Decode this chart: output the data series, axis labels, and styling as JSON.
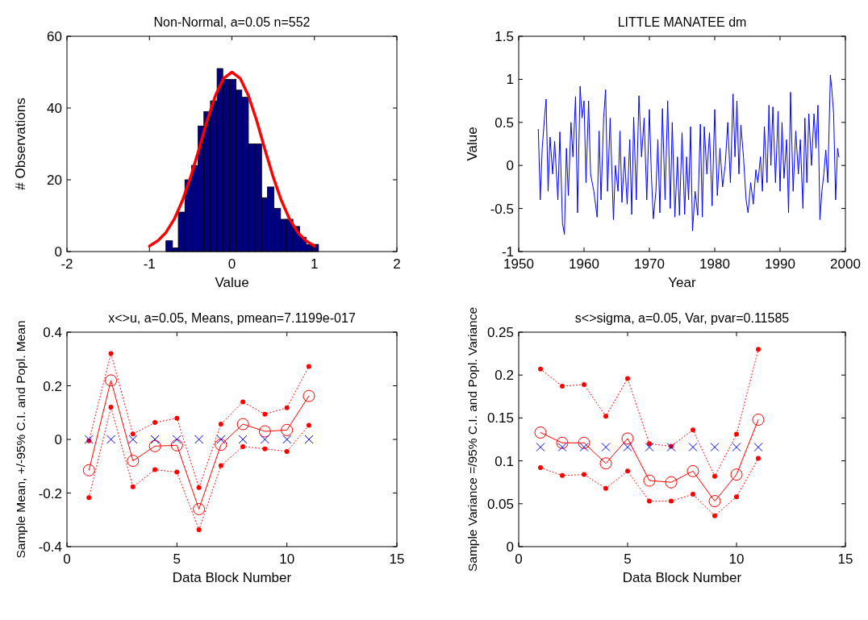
{
  "chart_data": [
    {
      "type": "histogram",
      "title": "Non-Normal, a=0.05 n=552",
      "xlabel": "Value",
      "ylabel": "# Observations",
      "xlim": [
        -2,
        2
      ],
      "ylim": [
        0,
        60
      ],
      "xticks": [
        -2,
        -1,
        0,
        1,
        2
      ],
      "yticks": [
        0,
        20,
        40,
        60
      ],
      "grid": false,
      "color": "#000080",
      "bins": [
        -0.8,
        -0.72,
        -0.65,
        -0.57,
        -0.49,
        -0.41,
        -0.34,
        -0.26,
        -0.18,
        -0.11,
        -0.03,
        0.05,
        0.12,
        0.2,
        0.28,
        0.36,
        0.43,
        0.51,
        0.59,
        0.66,
        0.74,
        0.82,
        0.9,
        0.97,
        1.05
      ],
      "values": [
        3,
        1,
        11,
        20,
        24,
        35,
        39,
        42,
        51,
        48,
        48,
        45,
        43,
        30,
        30,
        15,
        18,
        12,
        9,
        9,
        7,
        4,
        2,
        2
      ],
      "series": [
        {
          "type": "line",
          "color": "#ff0000",
          "x": [
            -1,
            -0.9,
            -0.8,
            -0.7,
            -0.6,
            -0.5,
            -0.4,
            -0.3,
            -0.2,
            -0.1,
            0,
            0.1,
            0.2,
            0.3,
            0.4,
            0.5,
            0.6,
            0.7,
            0.8,
            0.9,
            1
          ],
          "values": [
            1.5,
            3,
            5.3,
            9,
            14.2,
            20.8,
            28.5,
            36.5,
            43.5,
            48.3,
            50,
            48.3,
            43.5,
            36.5,
            28.5,
            20.8,
            14.2,
            9,
            5.3,
            3,
            1.5
          ]
        }
      ]
    },
    {
      "type": "line",
      "title": "LITTLE MANATEE dm",
      "xlabel": "Year",
      "ylabel": "Value",
      "xlim": [
        1950,
        2000
      ],
      "ylim": [
        -1,
        1.5
      ],
      "xticks": [
        1950,
        1960,
        1970,
        1980,
        1990,
        2000
      ],
      "yticks": [
        -1,
        -0.5,
        0,
        0.5,
        1,
        1.5
      ],
      "grid": false,
      "series": [
        {
          "color": "#0000ff",
          "x": [
            1953,
            1953.3,
            1953.6,
            1954,
            1954.2,
            1954.5,
            1954.8,
            1955.2,
            1955.5,
            1956,
            1956.3,
            1956.7,
            1957,
            1957.3,
            1957.6,
            1958,
            1958.3,
            1958.7,
            1959,
            1959.4,
            1959.7,
            1960,
            1960.3,
            1960.7,
            1961,
            1961.5,
            1962,
            1962.3,
            1962.6,
            1963,
            1963.3,
            1963.6,
            1964,
            1964.5,
            1964.8,
            1965.2,
            1965.5,
            1965.8,
            1966.2,
            1966.6,
            1967,
            1967.3,
            1967.6,
            1968,
            1968.4,
            1968.8,
            1969.2,
            1969.6,
            1970,
            1970.3,
            1970.6,
            1971,
            1971.3,
            1971.6,
            1972,
            1972.4,
            1972.8,
            1973.2,
            1973.5,
            1973.9,
            1974.3,
            1974.6,
            1975,
            1975.4,
            1975.7,
            1976,
            1976.3,
            1976.6,
            1977,
            1977.4,
            1977.8,
            1978.1,
            1978.4,
            1978.8,
            1979.2,
            1979.6,
            1980,
            1980.4,
            1980.8,
            1981.2,
            1981.6,
            1982,
            1982.4,
            1982.8,
            1983.1,
            1983.4,
            1983.7,
            1984,
            1984.4,
            1984.8,
            1985.1,
            1985.5,
            1985.9,
            1986.3,
            1986.6,
            1987,
            1987.3,
            1987.6,
            1988,
            1988.3,
            1988.6,
            1988.9,
            1989.3,
            1989.7,
            1990,
            1990.3,
            1990.6,
            1991,
            1991.3,
            1991.6,
            1992,
            1992.4,
            1992.8,
            1993.1,
            1993.5,
            1993.8,
            1994.1,
            1994.4,
            1994.8,
            1995.2,
            1995.5,
            1995.8,
            1996.1,
            1996.4,
            1996.7,
            1997,
            1997.3,
            1997.7,
            1997.9,
            1998.2,
            1998.5,
            1998.8,
            1999
          ],
          "values": [
            0.42,
            -0.4,
            0.2,
            0.6,
            0.77,
            -0.3,
            0.33,
            -0.1,
            0.28,
            -0.4,
            0.39,
            -0.67,
            -0.8,
            0.2,
            -0.35,
            0.5,
            0.1,
            0.8,
            -0.55,
            0.92,
            0.55,
            0.75,
            -0.2,
            0.75,
            -0.1,
            -0.3,
            -0.6,
            0.4,
            -0.4,
            0.55,
            0.88,
            -0.3,
            0.55,
            -0.63,
            0,
            -0.3,
            0.4,
            -0.43,
            0.1,
            -0.45,
            0.3,
            -0.57,
            0.56,
            -0.4,
            0.81,
            0.1,
            0.55,
            -0.4,
            0.65,
            -0.1,
            -0.62,
            -0.3,
            0.3,
            -0.55,
            0.66,
            -0.4,
            0.75,
            -0.5,
            0.5,
            -0.6,
            0.1,
            -0.58,
            0.38,
            -0.57,
            0.1,
            -0.4,
            0.45,
            -0.76,
            -0.3,
            -0.58,
            0.48,
            -0.6,
            0.45,
            -0.1,
            0.38,
            -0.47,
            0.65,
            -0.35,
            0.2,
            -0.25,
            0,
            0.5,
            -0.2,
            0.83,
            0.1,
            0.75,
            -0.1,
            0.47,
            0.1,
            -0.4,
            -0.55,
            -0.2,
            -0.45,
            -0.05,
            -0.2,
            0.1,
            -0.3,
            0.45,
            -0.2,
            0.7,
            0,
            0.68,
            -0.2,
            0.63,
            -0.3,
            0.5,
            -0.15,
            0.3,
            -0.55,
            0.85,
            -0.3,
            0.4,
            -0.1,
            0.3,
            -0.5,
            0.55,
            -0.2,
            0.6,
            0,
            0.6,
            0.2,
            0.7,
            -0.63,
            -0.3,
            -0.1,
            0.18,
            -0.2,
            1.05,
            0.9,
            0.6,
            -0.4,
            0.2,
            0.1
          ]
        }
      ]
    },
    {
      "type": "line",
      "title": "x<>u, a=0.05, Means, pmean=7.1199e-017",
      "xlabel": "Data Block Number",
      "ylabel": "Sample Mean, +/-95% C.I. and Popl. Mean",
      "xlim": [
        0,
        15
      ],
      "ylim": [
        -0.4,
        0.4
      ],
      "xticks": [
        0,
        5,
        10,
        15
      ],
      "yticks": [
        -0.4,
        -0.2,
        0,
        0.2,
        0.4
      ],
      "grid": false,
      "x": [
        1,
        2,
        3,
        4,
        5,
        6,
        7,
        8,
        9,
        10,
        11
      ],
      "series": [
        {
          "color": "#ff0000",
          "marker": "circle",
          "line_style": "solid",
          "values": [
            -0.115,
            0.22,
            -0.08,
            -0.025,
            -0.022,
            -0.26,
            -0.02,
            0.057,
            0.03,
            0.035,
            0.162
          ]
        },
        {
          "color": "#ff0000",
          "marker": "circle",
          "line_style": "dotted",
          "values": [
            -0.005,
            0.32,
            0.02,
            0.063,
            0.079,
            -0.18,
            0.057,
            0.14,
            0.094,
            0.118,
            0.272
          ]
        },
        {
          "color": "#ff0000",
          "marker": "circle",
          "line_style": "dotted",
          "values": [
            -0.217,
            0.12,
            -0.177,
            -0.113,
            -0.122,
            -0.337,
            -0.098,
            -0.027,
            -0.035,
            -0.045,
            0.053
          ]
        },
        {
          "type": "scatter",
          "color": "#0000ff",
          "marker": "cross",
          "values": [
            0,
            0,
            0,
            0,
            0,
            0,
            0,
            0,
            0,
            0,
            0
          ]
        }
      ]
    },
    {
      "type": "line",
      "title": "s<>sigma, a=0.05, Var, pvar=0.11585",
      "xlabel": "Data Block Number",
      "ylabel": "Sample Variance =/95% C.I. and Popl. Variance",
      "xlim": [
        0,
        15
      ],
      "ylim": [
        0,
        0.25
      ],
      "xticks": [
        0,
        5,
        10,
        15
      ],
      "yticks": [
        0,
        0.05,
        0.1,
        0.15,
        0.2,
        0.25
      ],
      "grid": false,
      "x": [
        1,
        2,
        3,
        4,
        5,
        6,
        7,
        8,
        9,
        10,
        11
      ],
      "series": [
        {
          "color": "#ff0000",
          "marker": "circle",
          "line_style": "solid",
          "values": [
            0.133,
            0.121,
            0.121,
            0.097,
            0.126,
            0.077,
            0.075,
            0.088,
            0.053,
            0.084,
            0.148
          ]
        },
        {
          "color": "#ff0000",
          "marker": "circle",
          "line_style": "dotted",
          "values": [
            0.207,
            0.187,
            0.189,
            0.152,
            0.196,
            0.12,
            0.117,
            0.136,
            0.082,
            0.131,
            0.23
          ]
        },
        {
          "color": "#ff0000",
          "marker": "circle",
          "line_style": "dotted",
          "values": [
            0.092,
            0.083,
            0.084,
            0.068,
            0.088,
            0.053,
            0.053,
            0.061,
            0.036,
            0.058,
            0.103
          ]
        },
        {
          "type": "scatter",
          "color": "#0000ff",
          "marker": "cross",
          "values": [
            0.116,
            0.116,
            0.116,
            0.116,
            0.116,
            0.116,
            0.116,
            0.116,
            0.116,
            0.116,
            0.116
          ]
        }
      ]
    }
  ]
}
